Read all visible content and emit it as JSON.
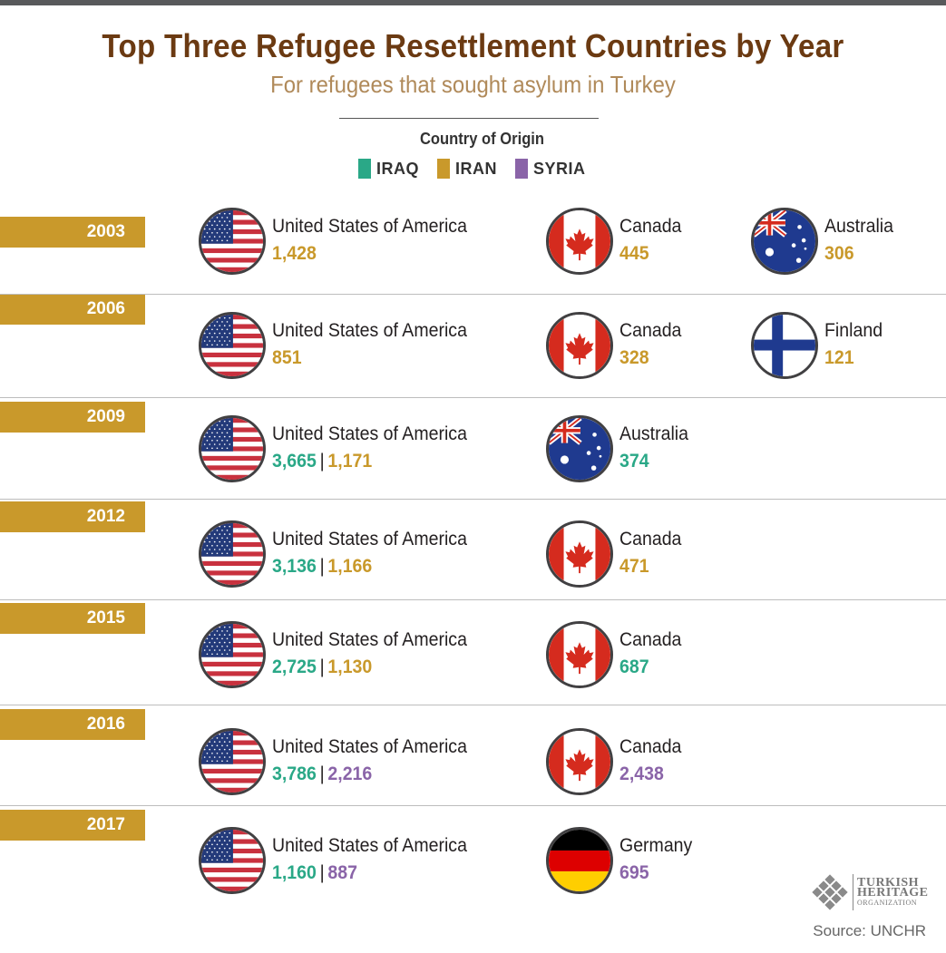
{
  "header": {
    "title": "Top Three Refugee Resettlement Countries by Year",
    "subtitle": "For refugees that sought asylum in Turkey"
  },
  "legend": {
    "title": "Country of Origin",
    "items": [
      {
        "label": "IRAQ",
        "color": "#2aa887"
      },
      {
        "label": "IRAN",
        "color": "#c9992b"
      },
      {
        "label": "SYRIA",
        "color": "#8a64a8"
      }
    ]
  },
  "years": [
    {
      "year": "2003",
      "entries": [
        {
          "country": "United States of America",
          "flag": "usa-flag-icon",
          "values": [
            {
              "value": "1,428",
              "origin": "iran"
            }
          ]
        },
        {
          "country": "Canada",
          "flag": "canada-flag-icon",
          "values": [
            {
              "value": "445",
              "origin": "iran"
            }
          ]
        },
        {
          "country": "Australia",
          "flag": "australia-flag-icon",
          "values": [
            {
              "value": "306",
              "origin": "iran"
            }
          ]
        }
      ]
    },
    {
      "year": "2006",
      "entries": [
        {
          "country": "United States of America",
          "flag": "usa-flag-icon",
          "values": [
            {
              "value": "851",
              "origin": "iran"
            }
          ]
        },
        {
          "country": "Canada",
          "flag": "canada-flag-icon",
          "values": [
            {
              "value": "328",
              "origin": "iran"
            }
          ]
        },
        {
          "country": "Finland",
          "flag": "finland-flag-icon",
          "values": [
            {
              "value": "121",
              "origin": "iran"
            }
          ]
        }
      ]
    },
    {
      "year": "2009",
      "entries": [
        {
          "country": "United States of America",
          "flag": "usa-flag-icon",
          "values": [
            {
              "value": "3,665",
              "origin": "iraq"
            },
            {
              "value": "1,171",
              "origin": "iran"
            }
          ]
        },
        {
          "country": "Australia",
          "flag": "australia-flag-icon",
          "values": [
            {
              "value": "374",
              "origin": "iraq"
            }
          ]
        }
      ]
    },
    {
      "year": "2012",
      "entries": [
        {
          "country": "United States of America",
          "flag": "usa-flag-icon",
          "values": [
            {
              "value": "3,136",
              "origin": "iraq"
            },
            {
              "value": "1,166",
              "origin": "iran"
            }
          ]
        },
        {
          "country": "Canada",
          "flag": "canada-flag-icon",
          "values": [
            {
              "value": "471",
              "origin": "iran"
            }
          ]
        }
      ]
    },
    {
      "year": "2015",
      "entries": [
        {
          "country": "United States of America",
          "flag": "usa-flag-icon",
          "values": [
            {
              "value": "2,725",
              "origin": "iraq"
            },
            {
              "value": "1,130",
              "origin": "iran"
            }
          ]
        },
        {
          "country": "Canada",
          "flag": "canada-flag-icon",
          "values": [
            {
              "value": "687",
              "origin": "iraq"
            }
          ]
        }
      ]
    },
    {
      "year": "2016",
      "entries": [
        {
          "country": "United States of America",
          "flag": "usa-flag-icon",
          "values": [
            {
              "value": "3,786",
              "origin": "iraq"
            },
            {
              "value": "2,216",
              "origin": "syria"
            }
          ]
        },
        {
          "country": "Canada",
          "flag": "canada-flag-icon",
          "values": [
            {
              "value": "2,438",
              "origin": "syria"
            }
          ]
        }
      ]
    },
    {
      "year": "2017",
      "entries": [
        {
          "country": "United States of America",
          "flag": "usa-flag-icon",
          "values": [
            {
              "value": "1,160",
              "origin": "iraq"
            },
            {
              "value": "887",
              "origin": "syria"
            }
          ]
        },
        {
          "country": "Germany",
          "flag": "germany-flag-icon",
          "values": [
            {
              "value": "695",
              "origin": "syria"
            }
          ]
        }
      ]
    }
  ],
  "footer": {
    "logo": {
      "line1": "TURKISH",
      "line2": "HERITAGE",
      "line3": "ORGANIZATION"
    },
    "source": "Source: UNCHR"
  }
}
